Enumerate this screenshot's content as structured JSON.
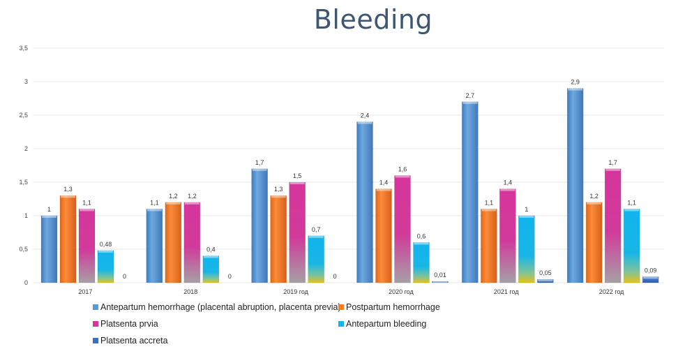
{
  "chart_data": {
    "type": "bar",
    "title": "Bleeding",
    "xlabel": "",
    "ylabel": "",
    "ylim": [
      0,
      3.5
    ],
    "yticks": [
      "0",
      "0,5",
      "1",
      "1,5",
      "2",
      "2,5",
      "3",
      "3,5"
    ],
    "ytick_values": [
      0,
      0.5,
      1,
      1.5,
      2,
      2.5,
      3,
      3.5
    ],
    "grid": true,
    "legend_position": "bottom",
    "categories": [
      "2017",
      "2018",
      "2019 год",
      "2020 год",
      "2021 год",
      "2022 год"
    ],
    "series": [
      {
        "name": "Antepartum hemorrhage (placental abruption, placenta previa)",
        "color": "#5b9bd5",
        "values": [
          1,
          1.1,
          1.7,
          2.4,
          2.7,
          2.9
        ],
        "labels": [
          "1",
          "1,1",
          "1,7",
          "2,4",
          "2,7",
          "2,9"
        ]
      },
      {
        "name": "Postpartum hemorrhage",
        "color": "#f47b20",
        "values": [
          1.3,
          1.2,
          1.3,
          1.4,
          1.1,
          1.2
        ],
        "labels": [
          "1,3",
          "1,2",
          "1,3",
          "1,4",
          "1,1",
          "1,2"
        ]
      },
      {
        "name": "Platsenta prvia",
        "color": "#d6359c",
        "values": [
          1.1,
          1.2,
          1.5,
          1.6,
          1.4,
          1.7
        ],
        "labels": [
          "1,1",
          "1,2",
          "1,5",
          "1,6",
          "1,4",
          "1,7"
        ]
      },
      {
        "name": "Antepartum bleeding",
        "color": "#12b5ec",
        "values": [
          0.48,
          0.4,
          0.7,
          0.6,
          1,
          1.1
        ],
        "labels": [
          "0,48",
          "0,4",
          "0,7",
          "0,6",
          "1",
          "1,1"
        ]
      },
      {
        "name": "Platsenta accreta",
        "color": "#3a6fc4",
        "values": [
          0,
          0,
          0,
          0.01,
          0.05,
          0.09
        ],
        "labels": [
          "0",
          "0",
          "0",
          "0,01",
          "0,05",
          "0,09"
        ]
      }
    ]
  }
}
